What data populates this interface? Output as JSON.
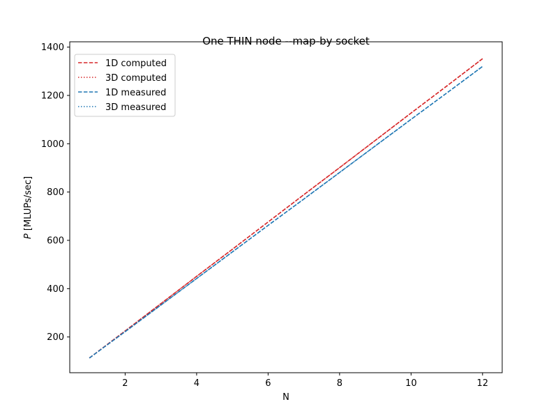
{
  "chart_data": {
    "type": "line",
    "title": "One THIN node --map-by socket",
    "xlabel": "N",
    "ylabel_italic": "P",
    "ylabel_rest": " [MLUPs/sec]",
    "xlim": [
      0.45,
      12.55
    ],
    "ylim": [
      52,
      1422
    ],
    "xticks": [
      2,
      4,
      6,
      8,
      10,
      12
    ],
    "yticks": [
      200,
      400,
      600,
      800,
      1000,
      1200,
      1400
    ],
    "grid": false,
    "legend_position": "upper-left",
    "x": [
      1,
      2,
      3,
      4,
      5,
      6,
      7,
      8,
      9,
      10,
      11,
      12
    ],
    "series": [
      {
        "name": "1D computed",
        "color": "#d62728",
        "dash": "dashed",
        "values": [
          113,
          225,
          338,
          451,
          563,
          676,
          789,
          901,
          1014,
          1127,
          1239,
          1352
        ]
      },
      {
        "name": "3D computed",
        "color": "#d62728",
        "dash": "dotted",
        "values": [
          113,
          225,
          338,
          451,
          563,
          676,
          789,
          901,
          1014,
          1127,
          1239,
          1352
        ]
      },
      {
        "name": "1D measured",
        "color": "#1f77b4",
        "dash": "dashed",
        "values": [
          113,
          222,
          332,
          442,
          552,
          662,
          771,
          881,
          991,
          1101,
          1210,
          1320
        ]
      },
      {
        "name": "3D measured",
        "color": "#1f77b4",
        "dash": "dotted",
        "values": [
          113,
          222,
          332,
          442,
          552,
          662,
          771,
          881,
          991,
          1101,
          1210,
          1320
        ]
      }
    ]
  }
}
